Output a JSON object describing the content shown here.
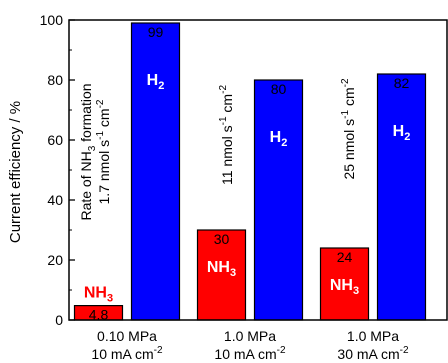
{
  "chart_data": {
    "type": "bar",
    "ylabel": "Current efficiency / %",
    "ylim": [
      0,
      100
    ],
    "yticks": [
      0,
      20,
      40,
      60,
      80,
      100
    ],
    "grid": false,
    "categories": [
      {
        "line1": "0.10 MPa",
        "line2_pre": "10 mA cm",
        "line2_sup": "-2"
      },
      {
        "line1": "1.0 MPa",
        "line2_pre": "10 mA cm",
        "line2_sup": "-2"
      },
      {
        "line1": "1.0 MPa",
        "line2_pre": "30 mA cm",
        "line2_sup": "-2"
      }
    ],
    "series": [
      {
        "label_main": "NH",
        "label_sub": "3",
        "color": "#ff0000",
        "values": [
          4.8,
          30,
          24
        ],
        "value_labels": [
          "4.8",
          "30",
          "24"
        ],
        "label_color": "#ff0000"
      },
      {
        "label_main": "H",
        "label_sub": "2",
        "color": "#0000ff",
        "values": [
          99,
          80,
          82
        ],
        "value_labels": [
          "99",
          "80",
          "82"
        ],
        "label_color": "#ffffff"
      }
    ],
    "annotations": [
      {
        "line1_a": "Rate of NH",
        "line1_sub": "3",
        "line1_b": " formation",
        "line2_a": "1.7 nmol s",
        "line2_sup1": "-1",
        "line2_b": " cm",
        "line2_sup2": "-2"
      },
      {
        "line1_a": "11 nmol s",
        "line1_sup1": "-1",
        "line1_b": " cm",
        "line1_sup2": "-2"
      },
      {
        "line1_a": "25 nmol s",
        "line1_sup1": "-1",
        "line1_b": " cm",
        "line1_sup2": "-2"
      }
    ]
  }
}
